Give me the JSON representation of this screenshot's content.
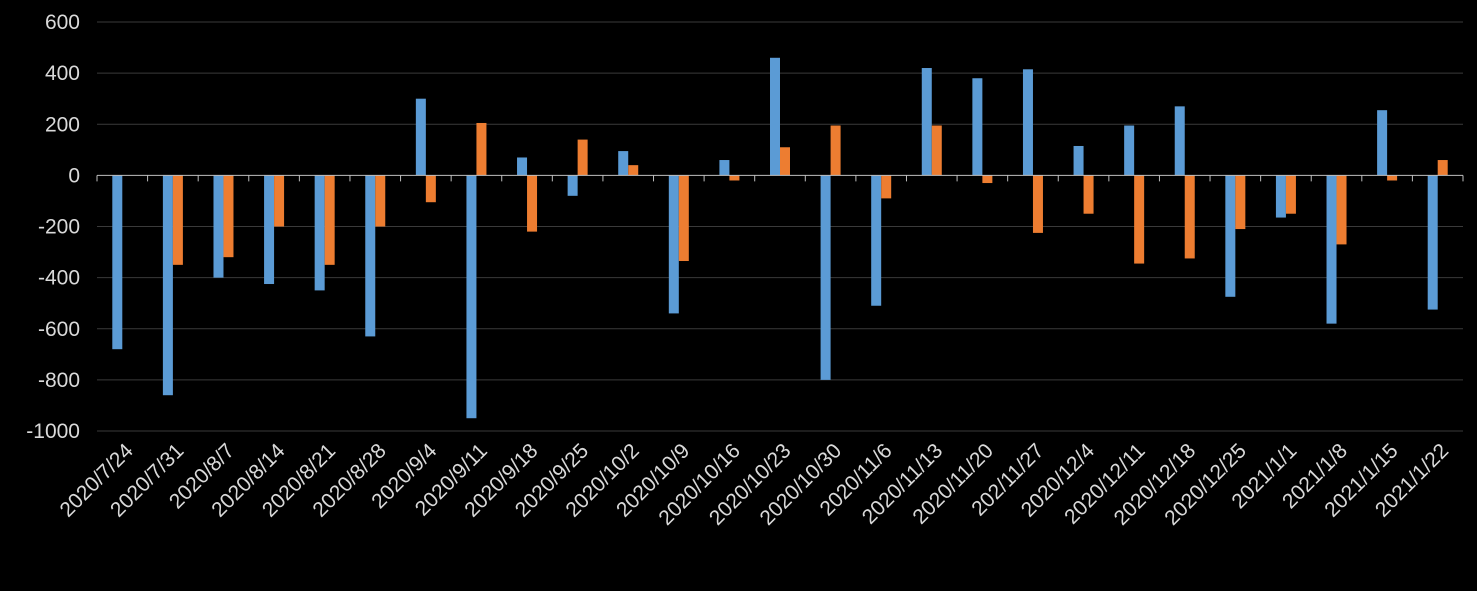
{
  "chart_data": {
    "type": "bar",
    "title": "",
    "xlabel": "",
    "ylabel": "",
    "ylim": [
      -1000,
      600
    ],
    "yticks": [
      600,
      400,
      200,
      0,
      -200,
      -400,
      -600,
      -800,
      -1000
    ],
    "grid": true,
    "legend": "none",
    "colors": [
      "#5B9BD5",
      "#ED7D31"
    ],
    "categories": [
      "2020/7/24",
      "2020/7/31",
      "2020/8/7",
      "2020/8/14",
      "2020/8/21",
      "2020/8/28",
      "2020/9/4",
      "2020/9/11",
      "2020/9/18",
      "2020/9/25",
      "2020/10/2",
      "2020/10/9",
      "2020/10/16",
      "2020/10/23",
      "2020/10/30",
      "2020/11/6",
      "2020/11/13",
      "2020/11/20",
      "202/11/27",
      "2020/12/4",
      "2020/12/11",
      "2020/12/18",
      "2020/12/25",
      "2021/1/1",
      "2021/1/8",
      "2021/1/15",
      "2021/1/22"
    ],
    "series": [
      {
        "values": [
          -680,
          -860,
          -400,
          -425,
          -450,
          -630,
          300,
          -950,
          70,
          -80,
          95,
          -540,
          60,
          460,
          -800,
          -510,
          420,
          380,
          415,
          115,
          195,
          270,
          -475,
          -165,
          -580,
          255,
          -525
        ]
      },
      {
        "values": [
          0,
          -350,
          -320,
          -200,
          -350,
          -200,
          -105,
          205,
          -220,
          140,
          40,
          -335,
          -20,
          110,
          195,
          -90,
          195,
          -30,
          -225,
          -150,
          -345,
          -325,
          -210,
          -150,
          -270,
          -20,
          60
        ]
      }
    ]
  }
}
